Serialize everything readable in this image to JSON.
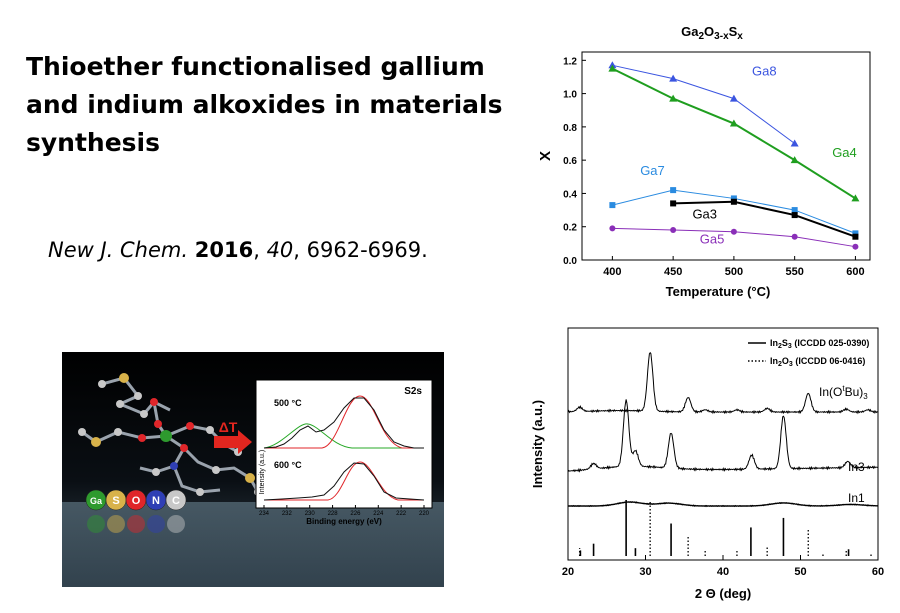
{
  "slide": {
    "title": "Thioether functionalised gallium and indium alkoxides in materials synthesis",
    "citation": {
      "journal": "New J. Chem.",
      "year": "2016",
      "volume": "40",
      "pages": "6962-6969."
    }
  },
  "chart_data": [
    {
      "type": "line",
      "title_base": "Ga",
      "title_sub1": "2",
      "title_mid": "O",
      "title_sub2": "3-x",
      "title_end": "S",
      "title_sub3": "x",
      "xlabel": "Temperature (°C)",
      "ylabel": "X",
      "xlim": [
        375,
        612
      ],
      "ylim": [
        0,
        1.25
      ],
      "xticks": [
        400,
        450,
        500,
        550,
        600
      ],
      "yticks": [
        0.0,
        0.2,
        0.4,
        0.6,
        0.8,
        1.0,
        1.2
      ],
      "series": [
        {
          "name": "Ga8",
          "color": "#3b55e0",
          "marker": "triangle",
          "x": [
            400,
            450,
            500,
            550
          ],
          "y": [
            1.17,
            1.09,
            0.97,
            0.7
          ],
          "label_at": [
            525,
            1.11
          ]
        },
        {
          "name": "Ga4",
          "color": "#1f9e1f",
          "marker": "triangle",
          "x": [
            400,
            450,
            500,
            550,
            600
          ],
          "y": [
            1.15,
            0.97,
            0.82,
            0.6,
            0.37
          ],
          "label_at": [
            591,
            0.62
          ]
        },
        {
          "name": "Ga7",
          "color": "#2a8be0",
          "marker": "square",
          "x": [
            400,
            450,
            500,
            550,
            600
          ],
          "y": [
            0.33,
            0.42,
            0.37,
            0.3,
            0.16
          ],
          "label_at": [
            433,
            0.51
          ]
        },
        {
          "name": "Ga3",
          "color": "#000000",
          "marker": "square",
          "x": [
            450,
            500,
            550,
            600
          ],
          "y": [
            0.34,
            0.35,
            0.27,
            0.14
          ],
          "label_at": [
            476,
            0.25
          ]
        },
        {
          "name": "Ga5",
          "color": "#8a2fb8",
          "marker": "circle",
          "x": [
            400,
            450,
            500,
            550,
            600
          ],
          "y": [
            0.19,
            0.18,
            0.17,
            0.14,
            0.08
          ],
          "label_at": [
            482,
            0.1
          ]
        }
      ]
    },
    {
      "type": "line",
      "xlabel": "2 Θ (deg)",
      "ylabel": "Intensity (a.u.)",
      "xlim": [
        20,
        60
      ],
      "xticks": [
        20,
        30,
        40,
        50,
        60
      ],
      "legend": [
        {
          "text_base": "In",
          "text_sub1": "2",
          "text_mid": "S",
          "text_sub2": "3",
          "text_end": " (ICCDD 025-0390)",
          "style": "solid"
        },
        {
          "text_base": "In",
          "text_sub1": "2",
          "text_mid": "O",
          "text_sub2": "3",
          "text_end": " (ICCDD 06-0416)",
          "style": "dotted"
        }
      ],
      "patterns": [
        {
          "label_base": "In(O",
          "label_sup": "t",
          "label_mid": "Bu)",
          "label_sub": "3",
          "baseline": 0.25,
          "peaks": [
            [
              21.5,
              0.06
            ],
            [
              30.6,
              0.82
            ],
            [
              35.5,
              0.2
            ],
            [
              37.7,
              0.03
            ],
            [
              41.8,
              0.03
            ],
            [
              45.7,
              0.05
            ],
            [
              51.0,
              0.26
            ],
            [
              55.9,
              0.04
            ],
            [
              58.7,
              0.03
            ]
          ]
        },
        {
          "label_base": "In3",
          "baseline": 0.42,
          "peaks": [
            [
              23.3,
              0.07
            ],
            [
              27.5,
              0.85
            ],
            [
              28.7,
              0.2
            ],
            [
              33.3,
              0.45
            ],
            [
              43.7,
              0.18
            ],
            [
              47.8,
              0.68
            ],
            [
              56.1,
              0.08
            ]
          ]
        },
        {
          "label_base": "In1",
          "baseline": 0.28,
          "peaks": [
            [
              28.0,
              0.18
            ],
            [
              33.0,
              0.13
            ],
            [
              47.8,
              0.14
            ],
            [
              56.5,
              0.07
            ]
          ]
        }
      ],
      "ref_solid": [
        [
          21.6,
          0.1
        ],
        [
          23.3,
          0.22
        ],
        [
          27.5,
          1.0
        ],
        [
          28.7,
          0.14
        ],
        [
          33.3,
          0.58
        ],
        [
          43.6,
          0.51
        ],
        [
          47.8,
          0.68
        ],
        [
          56.2,
          0.12
        ]
      ],
      "ref_dotted": [
        [
          21.5,
          0.14
        ],
        [
          30.6,
          1.0
        ],
        [
          35.5,
          0.34
        ],
        [
          37.7,
          0.12
        ],
        [
          41.8,
          0.1
        ],
        [
          45.7,
          0.16
        ],
        [
          51.0,
          0.47
        ],
        [
          52.9,
          0.05
        ],
        [
          55.9,
          0.09
        ],
        [
          59.1,
          0.05
        ]
      ]
    }
  ],
  "inset": {
    "title": "S2s",
    "temp1": "500 °C",
    "temp2": "600 °C",
    "ylabel": "Intensity (a.u.)",
    "xlabel": "Binding energy (eV)",
    "xticks": [
      "234",
      "232",
      "230",
      "228",
      "226",
      "224",
      "222",
      "220"
    ],
    "arrow_label": "ΔT",
    "legend_atoms": [
      {
        "symbol": "Ga",
        "color": "#2e9a2e"
      },
      {
        "symbol": "S",
        "color": "#d8b24a"
      },
      {
        "symbol": "O",
        "color": "#e0262a"
      },
      {
        "symbol": "N",
        "color": "#2f3fb5"
      },
      {
        "symbol": "C",
        "color": "#c8c8c8"
      }
    ]
  }
}
